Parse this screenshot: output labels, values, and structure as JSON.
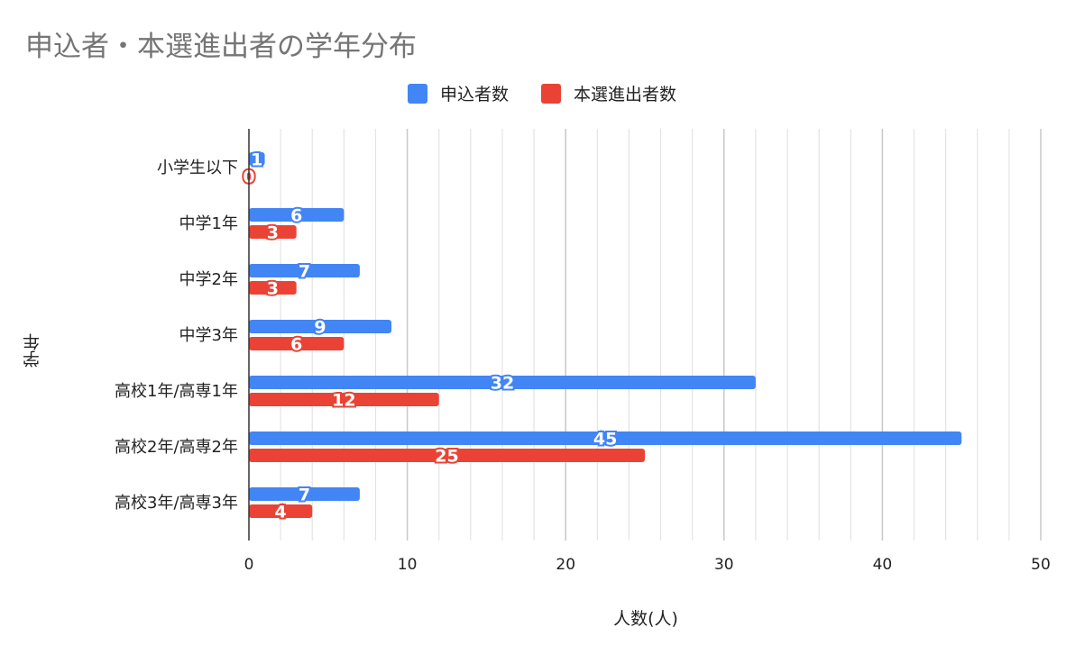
{
  "chart_data": {
    "type": "bar",
    "orientation": "horizontal",
    "title": "申込者・本選進出者の学年分布",
    "xlabel": "人数(人)",
    "ylabel": "学年",
    "xlim": [
      0,
      50
    ],
    "xticks": [
      0,
      10,
      20,
      30,
      40,
      50
    ],
    "grid": true,
    "legend_position": "top",
    "categories": [
      "小学生以下",
      "中学1年",
      "中学2年",
      "中学3年",
      "高校1年/高専1年",
      "高校2年/高専2年",
      "高校3年/高専3年"
    ],
    "series": [
      {
        "name": "申込者数",
        "color": "#4285f4",
        "values": [
          1,
          6,
          7,
          9,
          32,
          45,
          7
        ]
      },
      {
        "name": "本選進出者数",
        "color": "#ea4335",
        "values": [
          0,
          3,
          3,
          6,
          12,
          25,
          4
        ]
      }
    ]
  }
}
